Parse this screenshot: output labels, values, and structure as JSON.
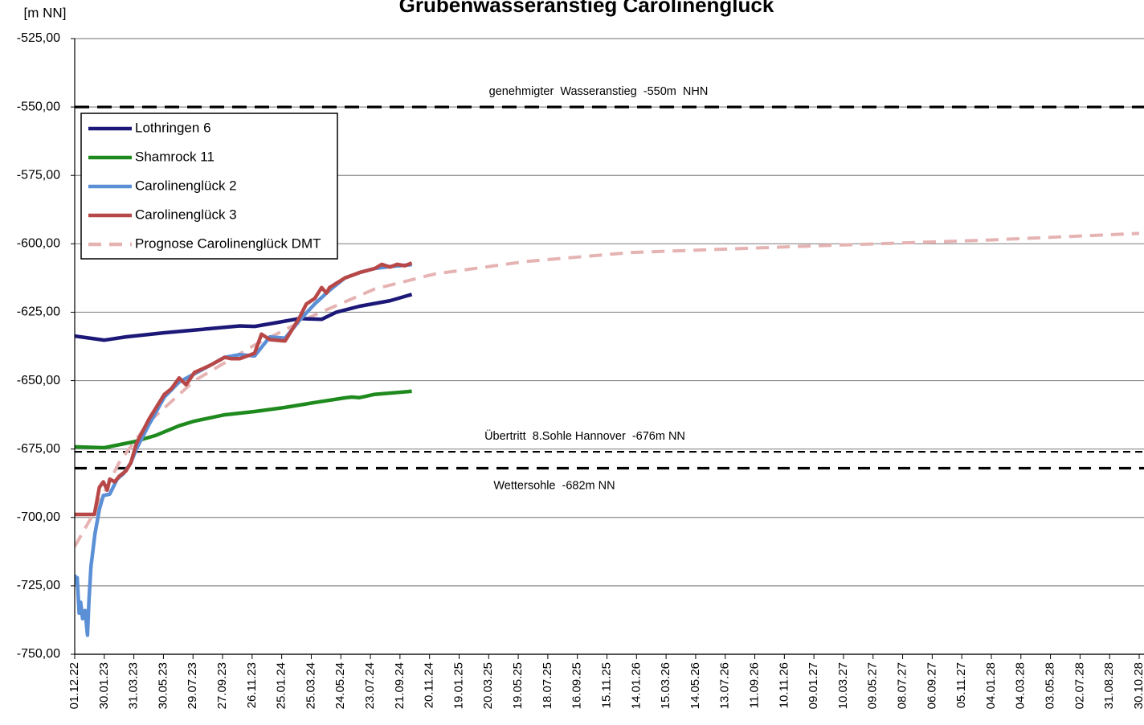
{
  "chart_data": {
    "type": "line",
    "title": "Grubenwasseranstieg Carolinenglück",
    "y_label": "[m NN]",
    "xlim": [
      "01.12.22",
      "30.10.28"
    ],
    "xticks": [
      "01.12.22",
      "30.01.23",
      "31.03.23",
      "30.05.23",
      "29.07.23",
      "27.09.23",
      "26.11.23",
      "25.01.24",
      "25.03.24",
      "24.05.24",
      "23.07.24",
      "21.09.24",
      "20.11.24",
      "19.01.25",
      "20.03.25",
      "19.05.25",
      "18.07.25",
      "16.09.25",
      "15.11.25",
      "14.01.26",
      "15.03.26",
      "14.05.26",
      "13.07.26",
      "11.09.26",
      "10.11.26",
      "09.01.27",
      "10.03.27",
      "09.05.27",
      "08.07.27",
      "06.09.27",
      "05.11.27",
      "04.01.28",
      "04.03.28",
      "03.05.28",
      "02.07.28",
      "31.08.28",
      "30.10.28"
    ],
    "ylim": [
      -750,
      -525
    ],
    "yticks": [
      {
        "value": -750,
        "label": "-750,00"
      },
      {
        "value": -725,
        "label": "-725,00"
      },
      {
        "value": -700,
        "label": "-700,00"
      },
      {
        "value": -675,
        "label": "-675,00"
      },
      {
        "value": -650,
        "label": "-650,00"
      },
      {
        "value": -625,
        "label": "-625,00"
      },
      {
        "value": -600,
        "label": "-600,00"
      },
      {
        "value": -575,
        "label": "-575,00"
      },
      {
        "value": -550,
        "label": "-550,00"
      },
      {
        "value": -525,
        "label": "-525,00"
      }
    ],
    "grid": true,
    "legend": "upper left",
    "reference_lines": [
      {
        "value": -550,
        "label": "genehmigter  Wasseranstieg  -550m  NHN"
      },
      {
        "value": -676,
        "label": "Übertritt  8.Sohle Hannover  -676m NN"
      },
      {
        "value": -682,
        "label": "Wettersohle  -682m NN"
      }
    ],
    "series": [
      {
        "name": "Lothringen 6",
        "color": "#1c1878",
        "x": [
          "01.12.22",
          "30.01.23",
          "15.03.23",
          "01.06.23",
          "01.09.23",
          "01.11.23",
          "01.12.23",
          "15.01.24",
          "01.03.24",
          "15.04.24",
          "15.05.24",
          "01.07.24",
          "01.09.24",
          "15.10.24"
        ],
        "values": [
          -633.7,
          -635.2,
          -634.0,
          -632.5,
          -631.0,
          -630.0,
          -630.2,
          -628.8,
          -627.3,
          -627.6,
          -625.0,
          -622.8,
          -620.8,
          -618.5
        ]
      },
      {
        "name": "Shamrock 11",
        "color": "#1e8a1e",
        "x": [
          "01.12.22",
          "30.01.23",
          "01.04.23",
          "15.05.23",
          "01.07.23",
          "01.08.23",
          "01.10.23",
          "01.12.23",
          "01.02.24",
          "01.04.24",
          "01.06.24",
          "15.06.24",
          "01.07.24",
          "01.08.24",
          "15.10.24"
        ],
        "values": [
          -674.2,
          -674.5,
          -672.3,
          -670.0,
          -666.5,
          -664.8,
          -662.5,
          -661.3,
          -659.8,
          -658.0,
          -656.3,
          -656.0,
          -656.2,
          -655.0,
          -653.9
        ]
      },
      {
        "name": "Carolinenglück 2",
        "color": "#5b8fd6",
        "x": [
          "01.12.22",
          "03.12.22",
          "06.12.22",
          "10.12.22",
          "13.12.22",
          "17.12.22",
          "22.12.22",
          "27.12.22",
          "30.12.22",
          "03.01.23",
          "11.01.23",
          "20.01.23",
          "28.01.23",
          "10.02.23",
          "25.02.23",
          "10.03.23",
          "25.03.23",
          "05.04.23",
          "01.05.23",
          "01.06.23",
          "01.07.23",
          "01.08.23",
          "01.09.23",
          "01.10.23",
          "01.11.23",
          "01.12.23",
          "01.01.24",
          "01.02.24",
          "01.03.24",
          "01.04.24",
          "01.05.24",
          "01.06.24",
          "01.07.24",
          "01.08.24",
          "01.09.24",
          "15.10.24"
        ],
        "values": [
          -720.9,
          -724,
          -722,
          -735,
          -731,
          -737,
          -734,
          -743,
          -730,
          -718,
          -706,
          -697,
          -692,
          -691.5,
          -686,
          -684,
          -680,
          -675,
          -666,
          -656,
          -650.5,
          -647.5,
          -644.5,
          -641.5,
          -640.5,
          -641,
          -634,
          -634.5,
          -628,
          -622,
          -617,
          -612.5,
          -610.5,
          -609,
          -608.3,
          -607.6
        ]
      },
      {
        "name": "Carolinenglück 3",
        "color": "#b84848",
        "x": [
          "01.12.22",
          "10.01.23",
          "20.01.23",
          "28.01.23",
          "05.02.23",
          "10.02.23",
          "20.02.23",
          "01.03.23",
          "15.03.23",
          "25.03.23",
          "05.04.23",
          "01.05.23",
          "01.06.23",
          "15.06.23",
          "01.07.23",
          "15.07.23",
          "01.08.23",
          "01.09.23",
          "01.10.23",
          "15.10.23",
          "01.11.23",
          "01.12.23",
          "15.12.23",
          "01.01.24",
          "01.02.24",
          "01.03.24",
          "15.03.24",
          "01.04.24",
          "15.04.24",
          "25.04.24",
          "01.05.24",
          "01.06.24",
          "01.07.24",
          "01.08.24",
          "15.08.24",
          "01.09.24",
          "15.09.24",
          "01.10.24",
          "15.10.24"
        ],
        "values": [
          -698.9,
          -698.9,
          -689,
          -687,
          -690,
          -686,
          -687,
          -685,
          -683,
          -680,
          -673,
          -664,
          -655,
          -653,
          -649,
          -651.5,
          -647,
          -644.5,
          -641.5,
          -642,
          -642,
          -640,
          -633,
          -635,
          -635.5,
          -627,
          -622,
          -620,
          -616,
          -618,
          -616,
          -612.5,
          -610.5,
          -609,
          -607.5,
          -608.5,
          -607.5,
          -608,
          -607
        ]
      },
      {
        "name": "Prognose Carolinenglück DMT",
        "color": "#e6b3b3",
        "dashed": true,
        "x": [
          "01.12.22",
          "10.01.23",
          "01.03.23",
          "01.05.23",
          "01.08.23",
          "01.12.23",
          "01.04.24",
          "01.08.24",
          "01.12.24",
          "01.06.25",
          "01.01.26",
          "01.01.27",
          "01.01.28",
          "30.10.28"
        ],
        "values": [
          -710.6,
          -698,
          -680,
          -665,
          -650,
          -637,
          -626,
          -616.5,
          -611,
          -606.5,
          -603.2,
          -600.8,
          -598.6,
          -596.2
        ]
      }
    ]
  }
}
